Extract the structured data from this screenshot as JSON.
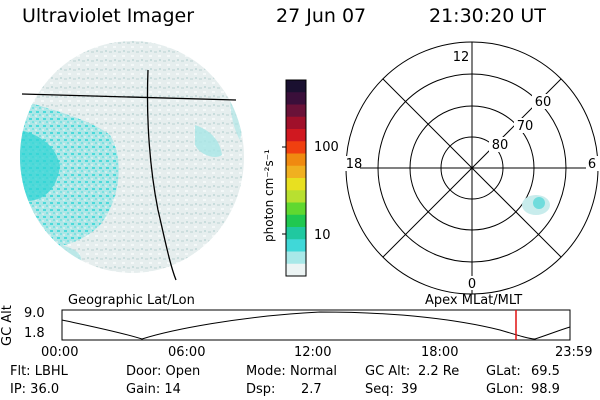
{
  "header": {
    "title": "Ultraviolet Imager",
    "date": "27 Jun 07",
    "time": "21:30:20 UT"
  },
  "colorbar": {
    "unit_label": "photon cm⁻²s⁻¹",
    "ticks": [
      "100",
      "10"
    ],
    "colors": [
      "#1a1030",
      "#3a0f3a",
      "#6a1238",
      "#a0102a",
      "#d01820",
      "#f04010",
      "#f08a10",
      "#f0b020",
      "#e8e020",
      "#b8e030",
      "#60d830",
      "#20c850",
      "#20c8a0",
      "#40d8d8",
      "#a8e8e8",
      "#ecf4f4"
    ]
  },
  "panels": {
    "left_label": "Geographic Lat/Lon",
    "right_label": "Apex MLat/MLT",
    "polar_labels": {
      "top": "12",
      "left": "18",
      "right": "6",
      "bottom": "0",
      "r60": "60",
      "r70": "70",
      "r80": "80"
    }
  },
  "altitude_plot": {
    "ylabel": "GC Alt",
    "ytick_top": "9.0",
    "ytick_bottom": "1.8",
    "xticks": [
      "00:00",
      "06:00",
      "12:00",
      "18:00",
      "23:59"
    ],
    "marker_color": "#e01010"
  },
  "footer": {
    "row1": {
      "flt": "Flt: LBHL",
      "door": "Door: Open",
      "mode_label": "Mode:",
      "mode_value": "Normal",
      "gcalt_label": "GC Alt:",
      "gcalt_value": "2.2 Re",
      "glat_label": "GLat:",
      "glat_value": "69.5"
    },
    "row2": {
      "ip": "IP: 36.0",
      "gain": "Gain: 14",
      "dsp_label": "Dsp:",
      "dsp_value": "2.7",
      "seq_label": "Seq:",
      "seq_value": "39",
      "glon_label": "GLon:",
      "glon_value": "98.9"
    }
  }
}
